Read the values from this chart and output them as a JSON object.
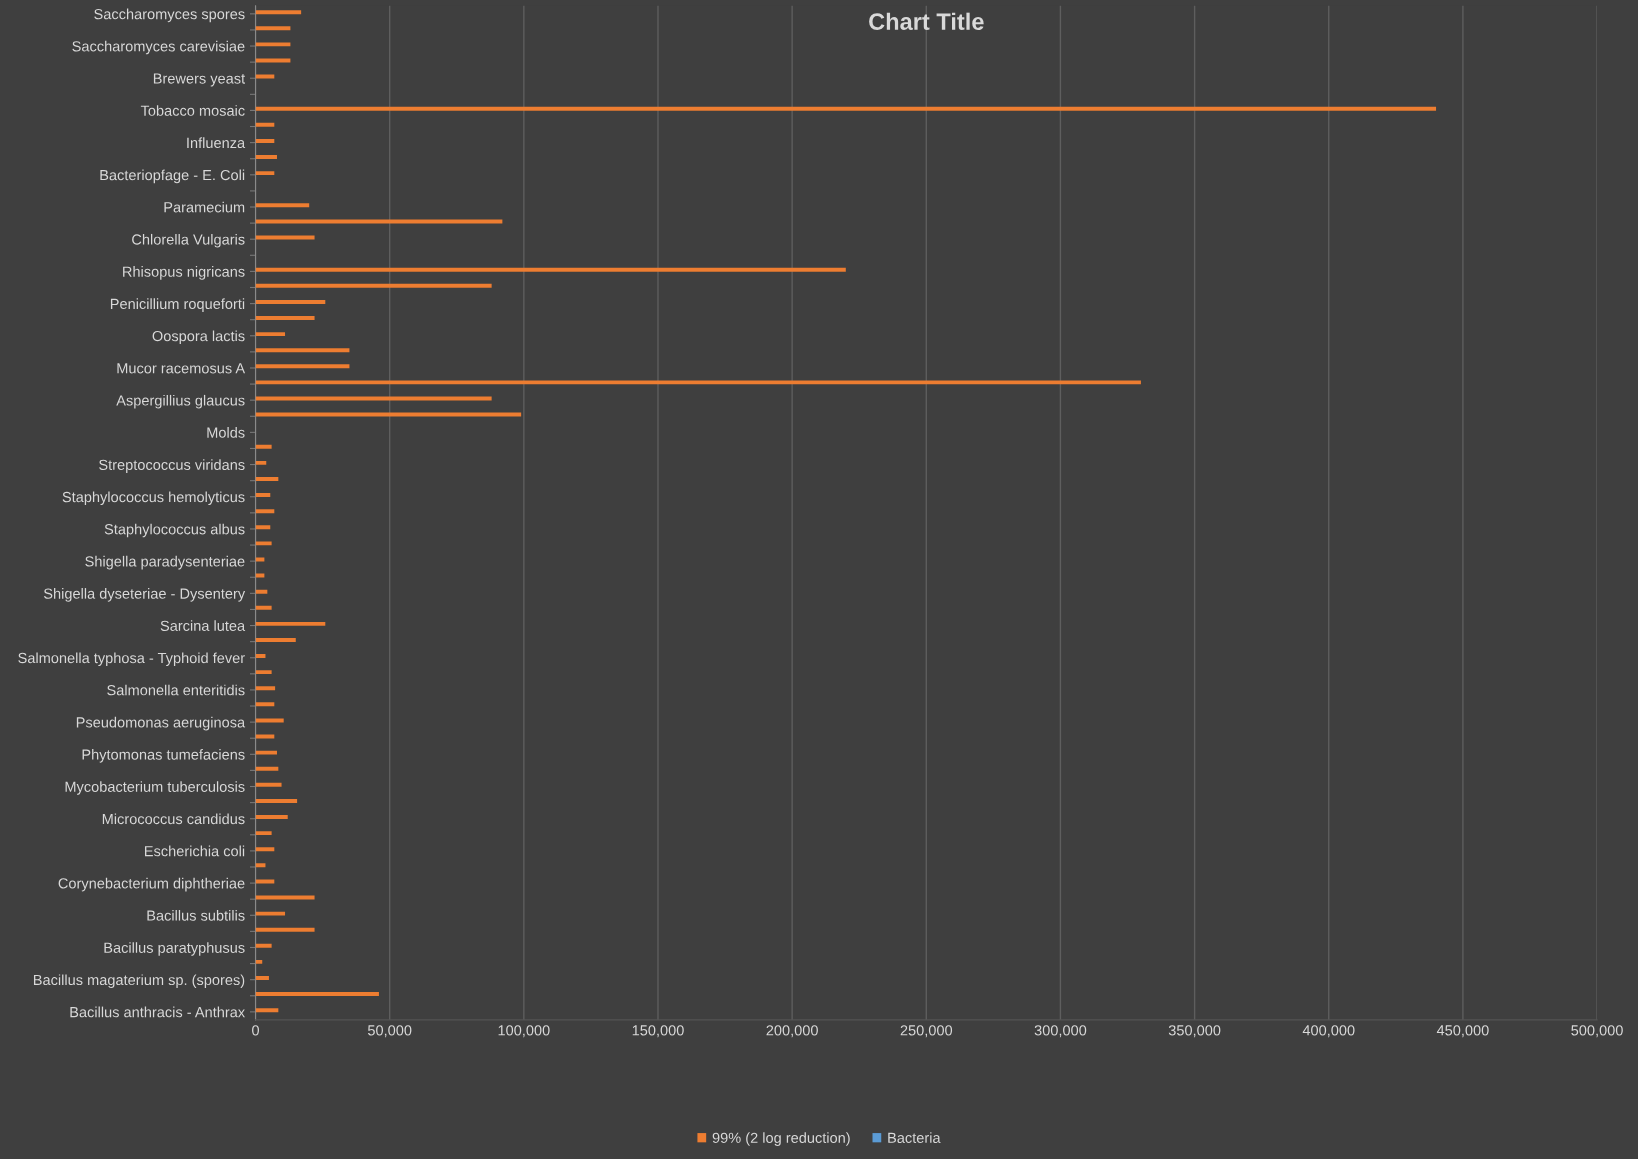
{
  "chart_data": {
    "type": "bar",
    "orientation": "horizontal",
    "title": "Chart Title",
    "categories": [
      "Saccharomyces spores",
      null,
      "Saccharomyces carevisiae",
      null,
      "Brewers yeast",
      null,
      "Tobacco mosaic",
      null,
      "Influenza",
      null,
      "Bacteriopfage - E. Coli",
      null,
      "Paramecium",
      null,
      "Chlorella Vulgaris",
      null,
      "Rhisopus nigricans",
      null,
      "Penicillium roqueforti",
      null,
      "Oospora lactis",
      null,
      "Mucor racemosus A",
      null,
      "Aspergillius glaucus",
      null,
      "Molds",
      null,
      "Streptococcus viridans",
      null,
      "Staphylococcus hemolyticus",
      null,
      "Staphylococcus albus",
      null,
      "Shigella paradysenteriae",
      null,
      "Shigella dyseteriae - Dysentery",
      null,
      "Sarcina lutea",
      null,
      "Salmonella typhosa - Typhoid fever",
      null,
      "Salmonella enteritidis",
      null,
      "Pseudomonas aeruginosa",
      null,
      "Phytomonas tumefaciens",
      null,
      "Mycobacterium tuberculosis",
      null,
      "Micrococcus candidus",
      null,
      "Escherichia coli",
      null,
      "Corynebacterium diphtheriae",
      null,
      "Bacillus subtilis",
      null,
      "Bacillus paratyphusus",
      null,
      "Bacillus magaterium sp. (spores)",
      null,
      "Bacillus anthracis - Anthrax"
    ],
    "series": [
      {
        "name": "99% (2 log reduction)",
        "color": "#ed7d31",
        "values": [
          17000,
          13000,
          13000,
          13000,
          7000,
          null,
          440000,
          7000,
          7000,
          8000,
          7000,
          null,
          20000,
          92000,
          22000,
          null,
          220000,
          88000,
          26000,
          22000,
          11000,
          35000,
          35000,
          330000,
          88000,
          99000,
          null,
          6000,
          4000,
          8500,
          5500,
          7000,
          5500,
          6000,
          3300,
          3300,
          4400,
          6000,
          26000,
          15000,
          3700,
          6000,
          7300,
          7000,
          10500,
          7000,
          8000,
          8500,
          9700,
          15500,
          12000,
          6000,
          7000,
          3700,
          7000,
          22000,
          11000,
          22000,
          6000,
          2500,
          5000,
          46000,
          8500
        ]
      },
      {
        "name": "Bacteria",
        "color": "#5b9bd5",
        "values": [
          null,
          null,
          null,
          null,
          null,
          null,
          null,
          null,
          null,
          null,
          null,
          null,
          null,
          null,
          null,
          null,
          null,
          null,
          null,
          null,
          null,
          null,
          null,
          null,
          null,
          null,
          null,
          null,
          null,
          null,
          null,
          null,
          null,
          null,
          null,
          null,
          null,
          null,
          null,
          null,
          null,
          null,
          null,
          null,
          null,
          null,
          null,
          null,
          null,
          null,
          null,
          null,
          null,
          null,
          null,
          null,
          null,
          null,
          null,
          null,
          null,
          null,
          null
        ]
      }
    ],
    "xlim": [
      0,
      500000
    ],
    "xticks": [
      0,
      {
        "value": 50000,
        "label": "50,000"
      },
      {
        "value": 100000,
        "label": "100,000"
      },
      {
        "value": 150000,
        "label": "150,000"
      },
      {
        "value": 200000,
        "label": "200,000"
      },
      {
        "value": 250000,
        "label": "250,000"
      },
      {
        "value": 300000,
        "label": "300,000"
      },
      {
        "value": 350000,
        "label": "350,000"
      },
      {
        "value": 400000,
        "label": "400,000"
      },
      {
        "value": 450000,
        "label": "450,000"
      },
      {
        "value": 500000,
        "label": "500,000"
      }
    ],
    "grid": "x",
    "legend": "bottom"
  }
}
